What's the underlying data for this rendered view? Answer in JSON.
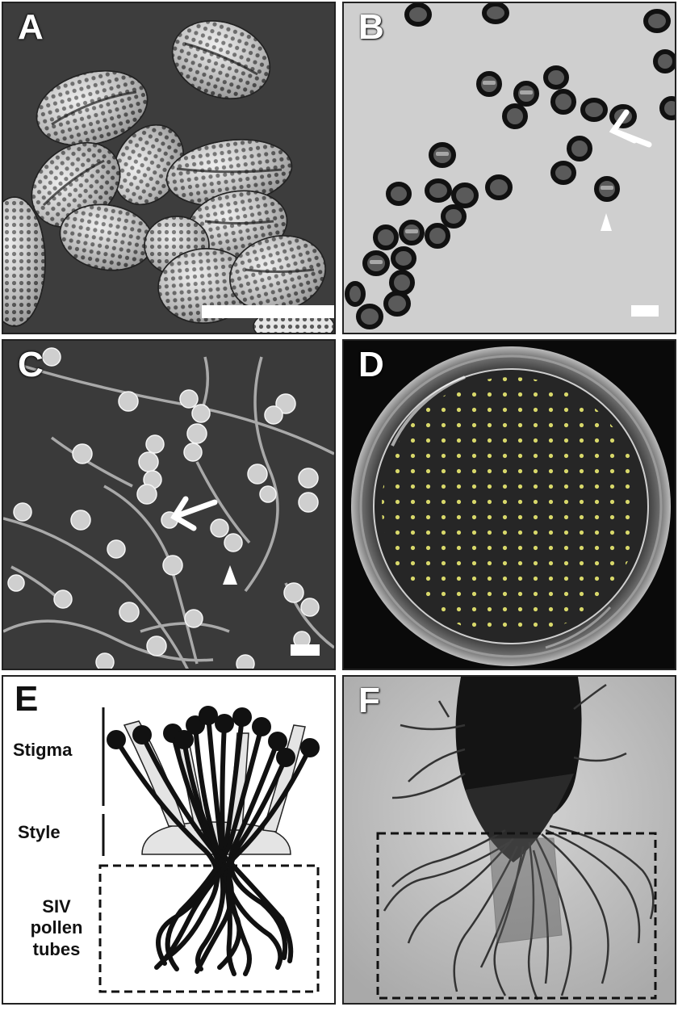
{
  "figure": {
    "panels": [
      {
        "letter": "A"
      },
      {
        "letter": "B"
      },
      {
        "letter": "C"
      },
      {
        "letter": "D"
      },
      {
        "letter": "E"
      },
      {
        "letter": "F"
      }
    ],
    "diagram_labels": {
      "stigma": "Stigma",
      "style": "Style",
      "siv_line1": "SIV",
      "siv_line2": "pollen",
      "siv_line3": "tubes"
    }
  }
}
